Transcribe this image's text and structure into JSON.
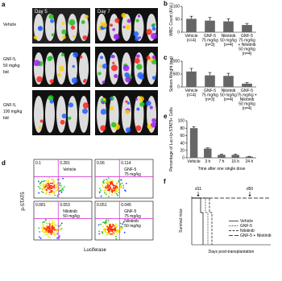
{
  "panels": {
    "a": {
      "label": "a",
      "days": [
        "Day 5",
        "Day 7"
      ],
      "rows": [
        [
          "Vehicle"
        ],
        [
          "GNF-5,",
          "50 mg/kg",
          "bid"
        ],
        [
          "GNF-5,",
          "100 mg/kg",
          "bid"
        ]
      ]
    },
    "b": {
      "label": "b",
      "ylabel": "WBC Count (K/uL)",
      "ylim": [
        0,
        100
      ],
      "yticks": [
        0,
        50,
        100
      ],
      "values": [
        52,
        45,
        42,
        28
      ],
      "errors": [
        10,
        12,
        10,
        6
      ],
      "categories": [
        [
          "Vehicle",
          "(n=4)"
        ],
        [
          "GNF-5",
          "75 mg/kg",
          "(n=3)"
        ],
        [
          "Nilotinib",
          "50 mg/kg",
          "(n=4)"
        ],
        [
          "GNF-5",
          "75 mg/kg",
          "+ Nilotinib",
          "50 mg/kg",
          "(n=4)"
        ]
      ]
    },
    "c": {
      "label": "c",
      "ylabel": "Spleen Weight (mg)",
      "ylim": [
        0,
        1000
      ],
      "yticks": [
        0,
        500,
        1000
      ],
      "values": [
        600,
        450,
        430,
        130
      ],
      "errors": [
        120,
        110,
        100,
        40
      ],
      "categories": [
        [
          "Vehicle",
          "(n=4)"
        ],
        [
          "GNF-5",
          "75 mg/kg",
          "(n=3)"
        ],
        [
          "Nilotinib",
          "50 mg/kg",
          "(n=4)"
        ],
        [
          "GNF-5",
          "75 mg/kg +",
          "Nilotinib",
          "50 mg/kg",
          "(n=4)"
        ]
      ]
    },
    "e": {
      "label": "e",
      "ylabel": "Percentage of Luc+/p-STAT5+ Cells",
      "xlabel": "Time after one single dose",
      "ylim": [
        0,
        100
      ],
      "yticks": [
        0,
        20,
        40,
        60,
        80,
        100
      ],
      "values": [
        80,
        25,
        8,
        8,
        3
      ],
      "errors": [
        4,
        2,
        2,
        2,
        1
      ],
      "categories": [
        "Vehicle",
        "3 h",
        "7 h",
        "16 h",
        "24 h"
      ]
    },
    "d": {
      "label": "d",
      "ylabel": "p-STAT5",
      "xlabel": "Luciferase",
      "plots": [
        {
          "name": [
            "Vehicle"
          ],
          "quad": [
            "0.1",
            "0.281"
          ]
        },
        {
          "name": [
            "GNF-5",
            "75 mg/kg"
          ],
          "quad": [
            "0.06",
            "0.114"
          ]
        },
        {
          "name": [
            "Nilotinib",
            "50 mg/kg"
          ],
          "quad": [
            "0.081",
            "0.053"
          ]
        },
        {
          "name": [
            "GNF-5",
            "75 mg/kg",
            "Nilotinib",
            "50 mg/kg"
          ],
          "quad": [
            "0.051",
            "0.045"
          ]
        }
      ]
    },
    "f": {
      "label": "f",
      "ylabel": "Survival mice",
      "xlabel": "Days post-transplantation",
      "marks": [
        "d11",
        "d50"
      ],
      "legend": [
        "Vehicle",
        "GNF-5",
        "Nilotinib",
        "GNF-5 + Nilotinib"
      ]
    }
  }
}
